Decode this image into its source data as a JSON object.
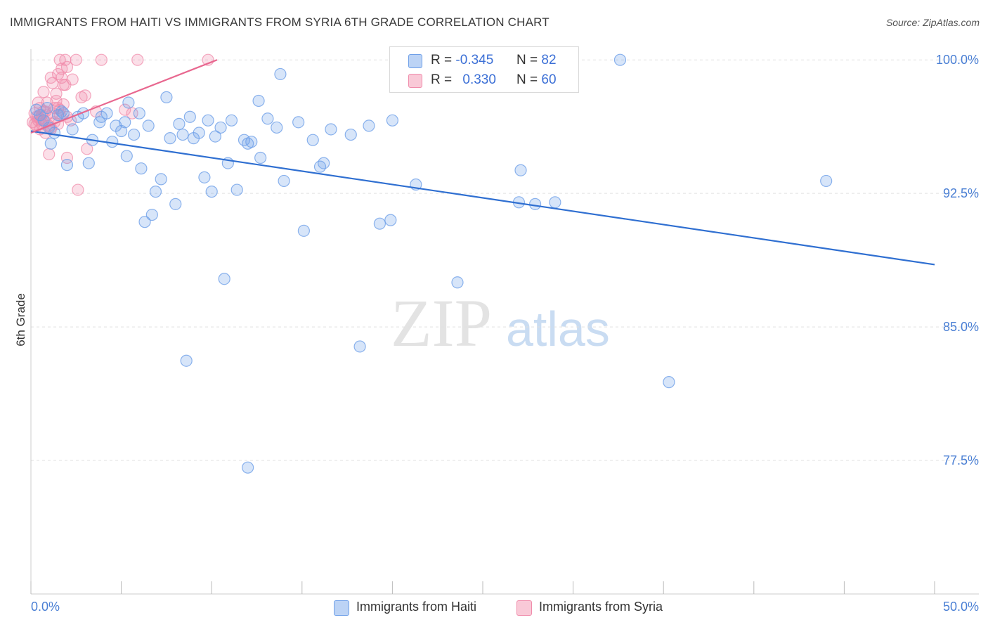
{
  "title": "IMMIGRANTS FROM HAITI VS IMMIGRANTS FROM SYRIA 6TH GRADE CORRELATION CHART",
  "source": "Source: ZipAtlas.com",
  "watermark": {
    "zip": "ZIP",
    "atlas": "atlas"
  },
  "legend": {
    "haiti": {
      "r_label": "R =",
      "r_value": "-0.345",
      "n_label": "N =",
      "n_value": "82"
    },
    "syria": {
      "r_label": "R =",
      "r_value": "0.330",
      "n_label": "N =",
      "n_value": "60"
    }
  },
  "colors": {
    "haiti": "#6fa0e8",
    "haiti_line": "#2f6fd1",
    "syria": "#f08cab",
    "syria_line": "#e8678f",
    "grid": "#e0e0e0",
    "tick_text": "#4a7fd4"
  },
  "chart_data": {
    "type": "scatter",
    "title": "IMMIGRANTS FROM HAITI VS IMMIGRANTS FROM SYRIA 6TH GRADE CORRELATION CHART",
    "xlabel": "",
    "ylabel": "6th Grade",
    "xlim": [
      0,
      50
    ],
    "ylim": [
      70.0,
      100.6
    ],
    "x_tick_labels": [
      "0.0%",
      "50.0%"
    ],
    "y_ticks": [
      77.5,
      85.0,
      92.5,
      100.0
    ],
    "y_tick_labels": [
      "77.5%",
      "85.0%",
      "92.5%",
      "100.0%"
    ],
    "grid": true,
    "series": [
      {
        "name": "Immigrants from Haiti",
        "points": [
          [
            0.3,
            97.2
          ],
          [
            0.5,
            96.9
          ],
          [
            0.7,
            96.6
          ],
          [
            0.9,
            97.3
          ],
          [
            1.0,
            96.2
          ],
          [
            1.1,
            95.3
          ],
          [
            1.3,
            95.9
          ],
          [
            1.5,
            96.9
          ],
          [
            1.7,
            97.1
          ],
          [
            2.0,
            94.1
          ],
          [
            2.3,
            96.1
          ],
          [
            2.6,
            96.8
          ],
          [
            2.9,
            97.0
          ],
          [
            3.2,
            94.2
          ],
          [
            3.4,
            95.5
          ],
          [
            3.8,
            96.5
          ],
          [
            3.9,
            96.8
          ],
          [
            4.2,
            97.0
          ],
          [
            4.5,
            95.4
          ],
          [
            4.7,
            96.3
          ],
          [
            5.0,
            96.0
          ],
          [
            5.2,
            96.5
          ],
          [
            5.3,
            94.6
          ],
          [
            5.4,
            97.6
          ],
          [
            5.7,
            95.8
          ],
          [
            6.0,
            97.0
          ],
          [
            6.1,
            93.9
          ],
          [
            6.3,
            90.9
          ],
          [
            6.5,
            96.3
          ],
          [
            6.7,
            91.3
          ],
          [
            6.9,
            92.6
          ],
          [
            7.2,
            93.3
          ],
          [
            7.5,
            97.9
          ],
          [
            7.7,
            95.6
          ],
          [
            8.0,
            91.9
          ],
          [
            8.2,
            96.4
          ],
          [
            8.4,
            95.8
          ],
          [
            8.6,
            83.1
          ],
          [
            8.8,
            96.8
          ],
          [
            9.0,
            95.6
          ],
          [
            9.3,
            95.9
          ],
          [
            9.6,
            93.4
          ],
          [
            9.8,
            96.6
          ],
          [
            10.0,
            92.6
          ],
          [
            10.2,
            95.7
          ],
          [
            10.5,
            96.2
          ],
          [
            10.7,
            87.7
          ],
          [
            10.9,
            94.2
          ],
          [
            11.1,
            96.6
          ],
          [
            11.4,
            92.7
          ],
          [
            11.8,
            95.5
          ],
          [
            12.0,
            95.3
          ],
          [
            12.2,
            95.4
          ],
          [
            12.0,
            77.1
          ],
          [
            12.6,
            97.7
          ],
          [
            12.7,
            94.5
          ],
          [
            13.1,
            96.7
          ],
          [
            13.6,
            96.2
          ],
          [
            13.8,
            99.2
          ],
          [
            14.0,
            93.2
          ],
          [
            14.8,
            96.5
          ],
          [
            15.1,
            90.4
          ],
          [
            15.6,
            95.5
          ],
          [
            16.0,
            94.0
          ],
          [
            16.2,
            94.2
          ],
          [
            16.6,
            96.1
          ],
          [
            17.7,
            95.8
          ],
          [
            18.2,
            83.9
          ],
          [
            18.7,
            96.3
          ],
          [
            19.3,
            90.8
          ],
          [
            19.9,
            91.0
          ],
          [
            20.0,
            96.6
          ],
          [
            21.3,
            93.0
          ],
          [
            23.6,
            87.5
          ],
          [
            27.0,
            92.0
          ],
          [
            27.1,
            93.8
          ],
          [
            27.9,
            91.9
          ],
          [
            29.0,
            92.0
          ],
          [
            32.6,
            100.0
          ],
          [
            35.3,
            81.9
          ],
          [
            44.0,
            93.2
          ],
          [
            1.8,
            97.0
          ]
        ]
      },
      {
        "name": "Immigrants from Syria",
        "points": [
          [
            0.1,
            96.5
          ],
          [
            0.2,
            97.0
          ],
          [
            0.3,
            96.8
          ],
          [
            0.3,
            96.3
          ],
          [
            0.4,
            97.6
          ],
          [
            0.4,
            96.6
          ],
          [
            0.5,
            97.3
          ],
          [
            0.5,
            96.1
          ],
          [
            0.6,
            96.9
          ],
          [
            0.6,
            96.4
          ],
          [
            0.7,
            98.2
          ],
          [
            0.7,
            97.1
          ],
          [
            0.8,
            96.5
          ],
          [
            0.8,
            95.9
          ],
          [
            0.9,
            97.6
          ],
          [
            1.0,
            96.3
          ],
          [
            1.0,
            94.7
          ],
          [
            1.1,
            99.0
          ],
          [
            1.1,
            96.2
          ],
          [
            1.2,
            98.7
          ],
          [
            1.2,
            97.0
          ],
          [
            1.3,
            96.5
          ],
          [
            1.4,
            97.7
          ],
          [
            1.4,
            98.1
          ],
          [
            1.5,
            99.2
          ],
          [
            1.5,
            97.3
          ],
          [
            1.6,
            100.0
          ],
          [
            1.6,
            96.9
          ],
          [
            1.7,
            99.5
          ],
          [
            1.7,
            99.0
          ],
          [
            1.8,
            98.6
          ],
          [
            1.8,
            97.5
          ],
          [
            1.9,
            100.0
          ],
          [
            1.9,
            98.6
          ],
          [
            2.0,
            99.6
          ],
          [
            2.0,
            96.8
          ],
          [
            2.0,
            94.5
          ],
          [
            2.3,
            98.9
          ],
          [
            2.5,
            100.0
          ],
          [
            2.6,
            92.7
          ],
          [
            2.8,
            97.9
          ],
          [
            3.0,
            98.0
          ],
          [
            3.1,
            95.0
          ],
          [
            3.6,
            97.1
          ],
          [
            3.9,
            100.0
          ],
          [
            5.2,
            97.2
          ],
          [
            5.6,
            97.0
          ],
          [
            5.9,
            100.0
          ],
          [
            9.8,
            100.0
          ],
          [
            0.9,
            96.9
          ],
          [
            1.3,
            97.3
          ],
          [
            0.5,
            96.7
          ],
          [
            0.2,
            96.4
          ],
          [
            1.6,
            97.2
          ],
          [
            2.2,
            96.6
          ],
          [
            0.8,
            97.1
          ],
          [
            1.1,
            96.1
          ],
          [
            0.4,
            96.8
          ],
          [
            1.5,
            96.4
          ],
          [
            0.6,
            96.6
          ]
        ]
      }
    ],
    "trend_lines": [
      {
        "series": "Immigrants from Haiti",
        "x": [
          0,
          50
        ],
        "y": [
          96.0,
          88.5
        ]
      },
      {
        "series": "Immigrants from Syria",
        "x": [
          0,
          10.3
        ],
        "y": [
          95.9,
          100.0
        ]
      }
    ]
  },
  "bottom_legend": {
    "haiti_label": "Immigrants from Haiti",
    "syria_label": "Immigrants from Syria"
  }
}
